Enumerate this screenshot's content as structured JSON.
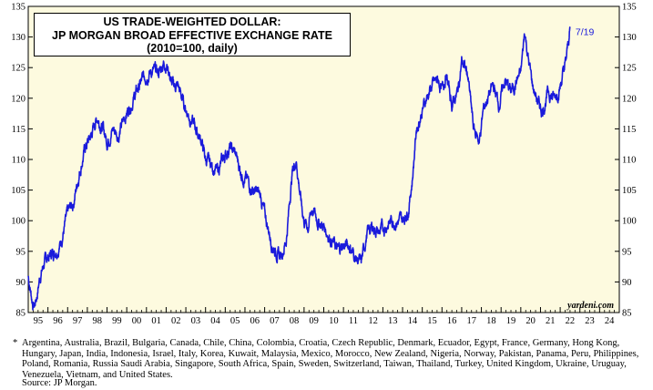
{
  "chart_data": {
    "type": "line",
    "title": "US TRADE-WEIGHTED DOLLAR:",
    "subtitle": "JP MORGAN BROAD EFFECTIVE EXCHANGE RATE",
    "subtitle2": "(2010=100, daily)",
    "ylim": [
      85,
      135
    ],
    "yticks": [
      85,
      90,
      95,
      100,
      105,
      110,
      115,
      120,
      125,
      130,
      135
    ],
    "xlim": [
      1995,
      2025
    ],
    "xtick_labels": [
      "95",
      "96",
      "97",
      "98",
      "99",
      "00",
      "01",
      "02",
      "03",
      "04",
      "05",
      "06",
      "07",
      "08",
      "09",
      "10",
      "11",
      "12",
      "13",
      "14",
      "15",
      "16",
      "17",
      "18",
      "19",
      "20",
      "21",
      "22",
      "23",
      "24"
    ],
    "end_label": "7/19",
    "watermark": "yardeni.com",
    "series_color": "#1a1adb",
    "background": "#fdfadf",
    "series": [
      {
        "x": [
          1995.0,
          1995.1,
          1995.2,
          1995.3,
          1995.45,
          1995.6,
          1995.8,
          1996.0,
          1996.3,
          1996.6,
          1997.0,
          1997.3,
          1997.6,
          1997.9,
          1998.2,
          1998.5,
          1998.8,
          1999.0,
          1999.3,
          1999.6,
          1999.9,
          2000.2,
          2000.5,
          2000.8,
          2001.0,
          2001.3,
          2001.6,
          2001.9,
          2002.1,
          2002.3,
          2002.6,
          2002.9,
          2003.2,
          2003.5,
          2003.8,
          2004.0,
          2004.3,
          2004.6,
          2004.9,
          2005.2,
          2005.5,
          2005.8,
          2006.0,
          2006.4,
          2006.8,
          2007.0,
          2007.4,
          2007.8,
          2008.1,
          2008.4,
          2008.6,
          2008.85,
          2009.0,
          2009.2,
          2009.4,
          2009.7,
          2010.0,
          2010.4,
          2010.7,
          2011.0,
          2011.3,
          2011.6,
          2011.9,
          2012.2,
          2012.5,
          2012.8,
          2013.1,
          2013.4,
          2013.7,
          2014.0,
          2014.3,
          2014.5,
          2014.7,
          2015.0,
          2015.2,
          2015.5,
          2015.8,
          2016.0,
          2016.2,
          2016.5,
          2016.8,
          2017.0,
          2017.3,
          2017.6,
          2017.9,
          2018.1,
          2018.3,
          2018.6,
          2018.9,
          2019.2,
          2019.5,
          2019.8,
          2020.0,
          2020.2,
          2020.4,
          2020.6,
          2020.9,
          2021.1,
          2021.4,
          2021.7,
          2022.0,
          2022.3,
          2022.5
        ],
        "y": [
          91,
          89,
          87,
          86,
          88,
          91,
          93,
          94,
          95,
          96,
          101,
          103,
          108,
          112,
          114,
          117,
          115,
          113,
          115,
          114,
          117,
          119,
          121,
          123,
          124,
          124.5,
          124,
          126,
          125,
          122,
          122,
          119,
          117,
          115,
          113,
          110,
          109,
          108,
          110,
          112,
          111,
          108,
          107,
          105,
          104,
          101,
          96,
          94,
          97,
          108,
          110,
          103,
          100,
          99,
          102,
          100,
          99,
          97,
          95,
          96,
          96,
          94,
          93,
          98,
          99,
          98,
          99,
          100,
          100,
          100,
          102,
          107,
          115,
          118,
          120,
          122,
          123,
          121,
          124,
          119,
          121,
          126,
          124,
          115,
          113,
          118,
          120,
          122,
          119,
          123,
          121,
          123,
          124,
          131,
          126,
          122,
          119,
          118,
          121,
          120,
          122,
          126,
          131.5
        ]
      }
    ]
  },
  "footnote": {
    "marker": "*",
    "text": "Argentina, Australia, Brazil, Bulgaria, Canada, Chile, China, Colombia, Croatia, Czech Republic, Denmark, Ecuador, Egypt, France, Germany, Hong Kong, Hungary, Japan, India, Indonesia, Israel, Italy, Korea, Kuwait, Malaysia, Mexico, Morocco, New Zealand, Nigeria, Norway, Pakistan, Panama, Peru, Philippines, Poland, Romania, Russia Saudi Arabia, Singapore, South Africa, Spain, Sweden, Switzerland, Taiwan, Thailand, Turkey, United Kingdom, Ukraine, Uruguay, Venezuela, Vietnam, and United States.",
    "source": "Source: JP Morgan."
  }
}
